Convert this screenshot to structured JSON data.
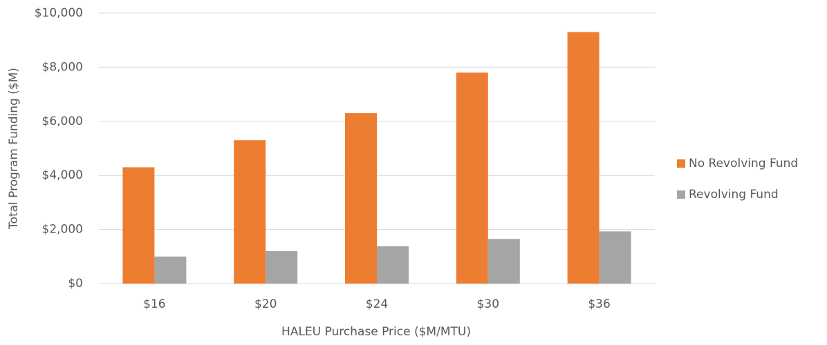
{
  "chart_data": {
    "type": "bar",
    "x_label": "HALEU Purchase Price ($M/MTU)",
    "y_label": "Total Program Funding ($M)",
    "categories": [
      "$16",
      "$20",
      "$24",
      "$30",
      "$36"
    ],
    "series": [
      {
        "name": "No Revolving Fund",
        "color": "#ed7d31",
        "values": [
          4300,
          5300,
          6300,
          7800,
          9300
        ]
      },
      {
        "name": "Revolving Fund",
        "color": "#a5a5a5",
        "values": [
          1000,
          1200,
          1380,
          1650,
          1930
        ]
      }
    ],
    "ylim": [
      0,
      10000
    ],
    "yticks": [
      {
        "value": 0,
        "label": "$0"
      },
      {
        "value": 2000,
        "label": "$2,000"
      },
      {
        "value": 4000,
        "label": "$4,000"
      },
      {
        "value": 6000,
        "label": "$6,000"
      },
      {
        "value": 8000,
        "label": "$8,000"
      },
      {
        "value": 10000,
        "label": "$10,000"
      }
    ],
    "grid": true,
    "legend": "right"
  }
}
